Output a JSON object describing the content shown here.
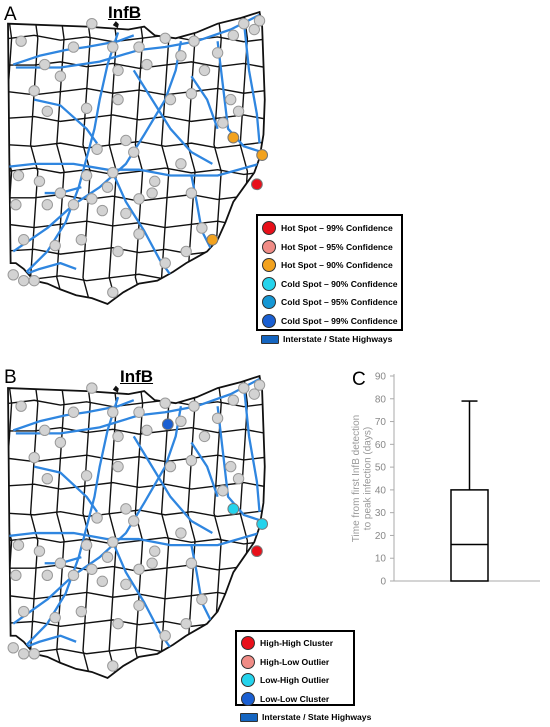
{
  "panel_a": {
    "letter": "A",
    "title": "InfB",
    "legend": [
      {
        "label": "Hot Spot – 99% Confidence",
        "color": "#e8101a"
      },
      {
        "label": "Hot Spot – 95% Confidence",
        "color": "#f08c86"
      },
      {
        "label": "Hot Spot – 90% Confidence",
        "color": "#f2a21e"
      },
      {
        "label": "Cold Spot – 90% Confidence",
        "color": "#25d3ec"
      },
      {
        "label": "Cold Spot – 95% Confidence",
        "color": "#1597d4"
      },
      {
        "label": "Cold Spot – 99% Confidence",
        "color": "#1a5fd2"
      },
      {
        "label": "Interstate / State Highways",
        "color": "#1565c0",
        "shape": "bar"
      }
    ]
  },
  "panel_b": {
    "letter": "B",
    "title": "InfB",
    "legend": [
      {
        "label": "High-High Cluster",
        "color": "#e8101a"
      },
      {
        "label": "High-Low Outlier",
        "color": "#f08c86"
      },
      {
        "label": "Low-High Outlier",
        "color": "#25d3ec"
      },
      {
        "label": "Low-Low Cluster",
        "color": "#1a5fd2"
      },
      {
        "label": "Interstate / State Highways",
        "color": "#1565c0",
        "shape": "bar"
      }
    ]
  },
  "panel_c": {
    "letter": "C"
  },
  "colors": {
    "highway": "#2f86e0",
    "county_line": "#111111",
    "site_fill": "#d3d3d3",
    "site_stroke": "#9a9a9a",
    "lake": "#111111"
  },
  "chart_data": {
    "type": "box",
    "ylabel": "Time from first InfB detection to peak infection (days)",
    "ylim": [
      0,
      90
    ],
    "yticks": [
      0,
      10,
      20,
      30,
      40,
      50,
      60,
      70,
      80,
      90
    ],
    "box": {
      "min": 0,
      "q1": 0,
      "median": 16,
      "q3": 40,
      "max": 79
    },
    "grid": false
  }
}
